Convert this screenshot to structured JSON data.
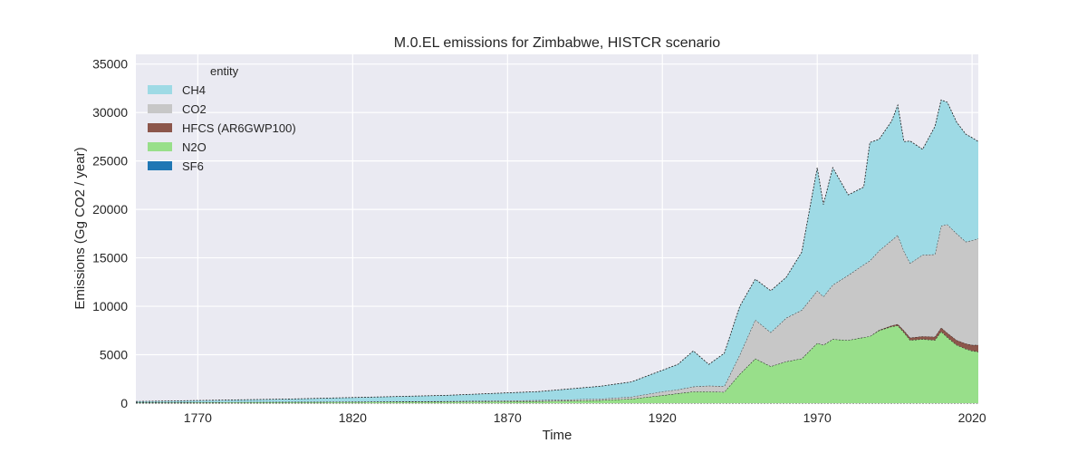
{
  "chart_data": {
    "type": "area",
    "stacked": true,
    "title": "M.0.EL emissions for Zimbabwe, HISTCR scenario",
    "xlabel": "Time",
    "ylabel": "Emissions (Gg CO2 / year)",
    "xlim": [
      1750,
      2022
    ],
    "ylim": [
      0,
      36000
    ],
    "xticks": [
      1770,
      1820,
      1870,
      1920,
      1970,
      2020
    ],
    "yticks": [
      0,
      5000,
      10000,
      15000,
      20000,
      25000,
      30000,
      35000
    ],
    "grid": true,
    "legend": {
      "title": "entity",
      "placement": "top-left"
    },
    "x": [
      1750,
      1800,
      1850,
      1880,
      1900,
      1910,
      1920,
      1925,
      1930,
      1935,
      1940,
      1945,
      1950,
      1955,
      1960,
      1965,
      1970,
      1972,
      1975,
      1980,
      1985,
      1987,
      1990,
      1994,
      1996,
      1998,
      2000,
      2004,
      2008,
      2010,
      2012,
      2015,
      2018,
      2020,
      2022
    ],
    "series": [
      {
        "name": "SF6",
        "color": "#1f77b4",
        "values": [
          0,
          0,
          0,
          0,
          0,
          0,
          0,
          0,
          0,
          0,
          0,
          0,
          0,
          0,
          0,
          0,
          0,
          0,
          0,
          0,
          0,
          0,
          0,
          0,
          0,
          0,
          0,
          0,
          0,
          0,
          0,
          0,
          0,
          0,
          0
        ]
      },
      {
        "name": "N2O",
        "color": "#98df8a",
        "values": [
          50,
          100,
          150,
          200,
          300,
          450,
          800,
          1000,
          1200,
          1200,
          1150,
          3000,
          4600,
          3800,
          4300,
          4600,
          6200,
          6000,
          6600,
          6500,
          6800,
          6900,
          7500,
          7900,
          8000,
          7300,
          6500,
          6600,
          6500,
          7400,
          6800,
          6000,
          5600,
          5400,
          5300
        ]
      },
      {
        "name": "HFCS (AR6GWP100)",
        "color": "#8c564b",
        "values": [
          0,
          0,
          0,
          0,
          0,
          0,
          0,
          0,
          0,
          0,
          0,
          0,
          0,
          0,
          0,
          0,
          0,
          0,
          0,
          0,
          0,
          0,
          50,
          100,
          150,
          200,
          250,
          300,
          350,
          400,
          450,
          500,
          550,
          600,
          700
        ]
      },
      {
        "name": "CO2",
        "color": "#c7c7c7",
        "values": [
          20,
          30,
          50,
          100,
          150,
          200,
          400,
          400,
          500,
          600,
          600,
          2000,
          4000,
          3500,
          4500,
          5000,
          5400,
          5000,
          5600,
          6700,
          7500,
          7800,
          8200,
          8800,
          9200,
          8200,
          7700,
          8400,
          8500,
          10500,
          11200,
          11000,
          10500,
          10800,
          11000
        ]
      },
      {
        "name": "CH4",
        "color": "#9edae5",
        "values": [
          100,
          300,
          600,
          900,
          1300,
          1550,
          2200,
          2600,
          3700,
          2200,
          3400,
          5000,
          4200,
          4300,
          4200,
          6000,
          12700,
          9500,
          12100,
          8300,
          8000,
          12200,
          11500,
          12300,
          13400,
          11300,
          12600,
          10900,
          13200,
          13000,
          12600,
          11500,
          11100,
          10600,
          10000
        ]
      }
    ]
  }
}
